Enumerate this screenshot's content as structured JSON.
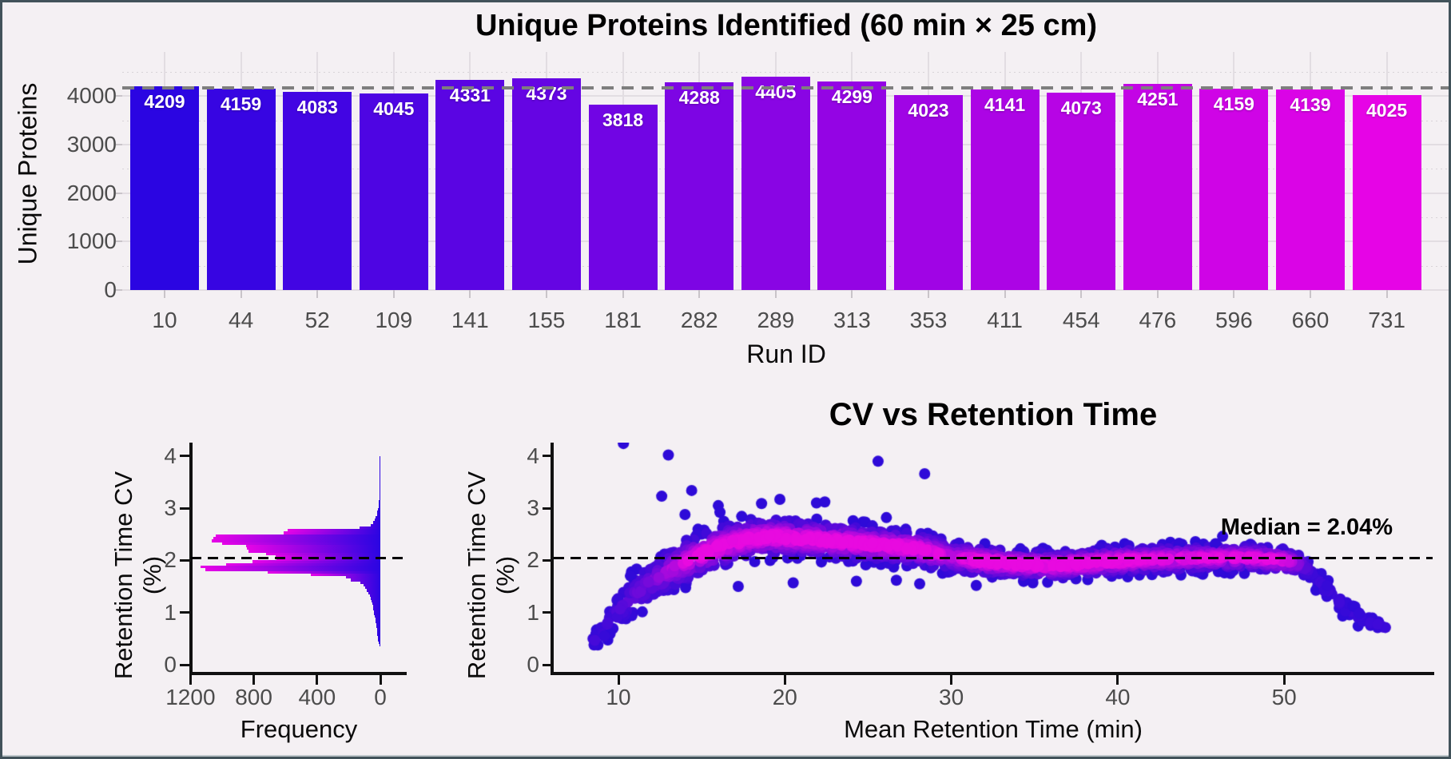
{
  "colors": {
    "bg": "#f4f0f3",
    "frame": "#41525a",
    "blue": "#2b05e2",
    "magenta": "#e604e6",
    "scatter_blue": "#2e0ad8",
    "scatter_magenta": "#e80ae0",
    "mean_line": "#7e7e7e",
    "median_line": "#000000",
    "grid": "#e2dde2",
    "tick_text": "#4c4c4c"
  },
  "chart_data": [
    {
      "type": "bar",
      "title": "Unique Proteins Identified (60 min × 25 cm)",
      "xlabel": "Run ID",
      "ylabel": "Unique Proteins",
      "categories": [
        "10",
        "44",
        "52",
        "109",
        "141",
        "155",
        "181",
        "282",
        "289",
        "313",
        "353",
        "411",
        "454",
        "476",
        "596",
        "660",
        "731"
      ],
      "values": [
        4209,
        4159,
        4083,
        4045,
        4331,
        4373,
        3818,
        4288,
        4405,
        4299,
        4023,
        4141,
        4073,
        4251,
        4159,
        4139,
        4025
      ],
      "yticks": [
        0,
        1000,
        2000,
        3000,
        4000
      ],
      "ylim": [
        0,
        4600
      ],
      "mean_line_value": 4166,
      "grid": true,
      "bar_color_scale": [
        "#2b05e2",
        "#e604e6"
      ]
    },
    {
      "type": "bar",
      "subtype": "horizontal-histogram",
      "title": "",
      "xlabel": "Frequency",
      "ylabel": "Retention Time CV (%)",
      "xticks": [
        1200,
        800,
        400,
        0
      ],
      "yticks": [
        0,
        1,
        2,
        3,
        4
      ],
      "xlim": [
        1270,
        0
      ],
      "ylim": [
        0,
        4.4
      ],
      "x_reversed": true,
      "median_value": 2.04,
      "cv_start": 0.35,
      "bin_width": 0.05,
      "freq": [
        6,
        10,
        13,
        16,
        18,
        20,
        22,
        25,
        27,
        30,
        32,
        35,
        38,
        42,
        45,
        48,
        52,
        57,
        62,
        68,
        76,
        85,
        96,
        108,
        128,
        185,
        215,
        440,
        710,
        1105,
        1136,
        975,
        810,
        655,
        662,
        724,
        834,
        845,
        848,
        1002,
        1065,
        1056,
        1040,
        611,
        586,
        131,
        60,
        45,
        35,
        28,
        22,
        18,
        14,
        11,
        9,
        8,
        7,
        6,
        5,
        7,
        4,
        4,
        3,
        5,
        4,
        3,
        3,
        2,
        2,
        2,
        3,
        5,
        2
      ],
      "bar_color_scale": [
        "#2b05e2",
        "#e604e6"
      ]
    },
    {
      "type": "scatter",
      "title": "CV vs Retention Time",
      "xlabel": "Mean Retention Time (min)",
      "ylabel": "Retention Time CV (%)",
      "xticks": [
        10,
        20,
        30,
        40,
        50
      ],
      "yticks": [
        0,
        1,
        2,
        3,
        4
      ],
      "xlim": [
        6,
        59
      ],
      "ylim": [
        0,
        4.4
      ],
      "median_value": 2.04,
      "annotation": "Median = 2.04%",
      "color_encoding": "point density (blue = low, magenta = high)",
      "band": [
        [
          8.4,
          0.42,
          0.06,
          7
        ],
        [
          9,
          0.62,
          0.12,
          11
        ],
        [
          9.5,
          0.85,
          0.15,
          13
        ],
        [
          10,
          1.05,
          0.18,
          15
        ],
        [
          10.5,
          1.2,
          0.2,
          17
        ],
        [
          11,
          1.35,
          0.22,
          19
        ],
        [
          12,
          1.6,
          0.22,
          24
        ],
        [
          13,
          1.8,
          0.22,
          28
        ],
        [
          14,
          1.97,
          0.22,
          32
        ],
        [
          15,
          2.12,
          0.2,
          34
        ],
        [
          16,
          2.25,
          0.2,
          36
        ],
        [
          17,
          2.35,
          0.19,
          36
        ],
        [
          18,
          2.42,
          0.18,
          36
        ],
        [
          19,
          2.45,
          0.18,
          36
        ],
        [
          20,
          2.44,
          0.18,
          36
        ],
        [
          22,
          2.4,
          0.17,
          36
        ],
        [
          24,
          2.34,
          0.17,
          36
        ],
        [
          26,
          2.29,
          0.16,
          36
        ],
        [
          28,
          2.22,
          0.16,
          36
        ],
        [
          30,
          2.07,
          0.15,
          36
        ],
        [
          32,
          1.98,
          0.14,
          36
        ],
        [
          34,
          1.93,
          0.13,
          36
        ],
        [
          36,
          1.9,
          0.13,
          36
        ],
        [
          38,
          1.94,
          0.13,
          36
        ],
        [
          40,
          1.99,
          0.13,
          36
        ],
        [
          42,
          2.02,
          0.13,
          36
        ],
        [
          44,
          2.04,
          0.13,
          34
        ],
        [
          46,
          2.05,
          0.12,
          34
        ],
        [
          48,
          2.05,
          0.12,
          32
        ],
        [
          50,
          2.0,
          0.12,
          30
        ],
        [
          51,
          1.92,
          0.12,
          22
        ],
        [
          51.8,
          1.75,
          0.12,
          14
        ],
        [
          52.5,
          1.45,
          0.12,
          11
        ],
        [
          53.5,
          1.15,
          0.1,
          9
        ],
        [
          54.5,
          0.92,
          0.08,
          8
        ],
        [
          55.5,
          0.78,
          0.06,
          7
        ],
        [
          56.2,
          0.72,
          0.05,
          5
        ]
      ],
      "outliers": [
        [
          10.3,
          4.24
        ],
        [
          13.0,
          4.02
        ],
        [
          25.6,
          3.9
        ],
        [
          28.4,
          3.66
        ],
        [
          12.6,
          3.23
        ],
        [
          14.4,
          3.34
        ],
        [
          18.6,
          3.09
        ],
        [
          19.7,
          3.17
        ],
        [
          16.0,
          3.05
        ],
        [
          16.1,
          2.92
        ],
        [
          21.9,
          3.1
        ],
        [
          22.4,
          3.12
        ],
        [
          26.1,
          2.82
        ],
        [
          24.1,
          2.76
        ],
        [
          14.0,
          2.88
        ],
        [
          45.8,
          2.28
        ],
        [
          46.3,
          2.46
        ],
        [
          20.5,
          1.57
        ],
        [
          24.3,
          1.6
        ],
        [
          26.7,
          1.62
        ],
        [
          28.1,
          1.55
        ],
        [
          31.5,
          1.52
        ],
        [
          34.9,
          1.57
        ],
        [
          38.2,
          1.63
        ],
        [
          17.2,
          1.5
        ]
      ]
    }
  ]
}
